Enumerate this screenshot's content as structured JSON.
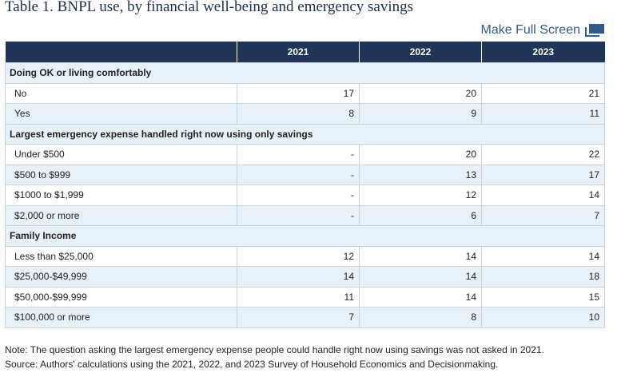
{
  "title": "Table 1. BNPL use, by financial well-being and emergency savings",
  "fullscreen_label": "Make Full Screen",
  "columns": [
    "",
    "2021",
    "2022",
    "2023"
  ],
  "sections": [
    {
      "label": "Doing OK or living comfortably",
      "rows": [
        {
          "label": "No",
          "values": [
            "17",
            "20",
            "21"
          ]
        },
        {
          "label": "Yes",
          "values": [
            "8",
            "9",
            "11"
          ]
        }
      ]
    },
    {
      "label": "Largest emergency expense handled right now using only savings",
      "rows": [
        {
          "label": "Under $500",
          "values": [
            "-",
            "20",
            "22"
          ]
        },
        {
          "label": "$500 to $999",
          "values": [
            "-",
            "13",
            "17"
          ]
        },
        {
          "label": "$1000 to $1,999",
          "values": [
            "-",
            "12",
            "14"
          ]
        },
        {
          "label": "$2,000 or more",
          "values": [
            "-",
            "6",
            "7"
          ]
        }
      ]
    },
    {
      "label": "Family Income",
      "rows": [
        {
          "label": "Less than $25,000",
          "values": [
            "12",
            "14",
            "14"
          ]
        },
        {
          "label": "$25,000-$49,999",
          "values": [
            "14",
            "14",
            "18"
          ]
        },
        {
          "label": "$50,000-$99,999",
          "values": [
            "11",
            "14",
            "15"
          ]
        },
        {
          "label": "$100,000 or more",
          "values": [
            "7",
            "8",
            "10"
          ]
        }
      ]
    }
  ],
  "note": "Note: The question asking the largest emergency expense people could handle right now using savings was not asked in 2021.",
  "source": "Source: Authors' calculations using the 2021, 2022, and 2023 Survey of Household Economics and Decisionmaking.",
  "colors": {
    "header_bg": "#1e3557",
    "title": "#1c2f4c",
    "link": "#2f5b8f",
    "row_alt": "#e9f1f8",
    "border": "#c9d3de"
  },
  "icons": {
    "fullscreen": "fullscreen-icon"
  }
}
